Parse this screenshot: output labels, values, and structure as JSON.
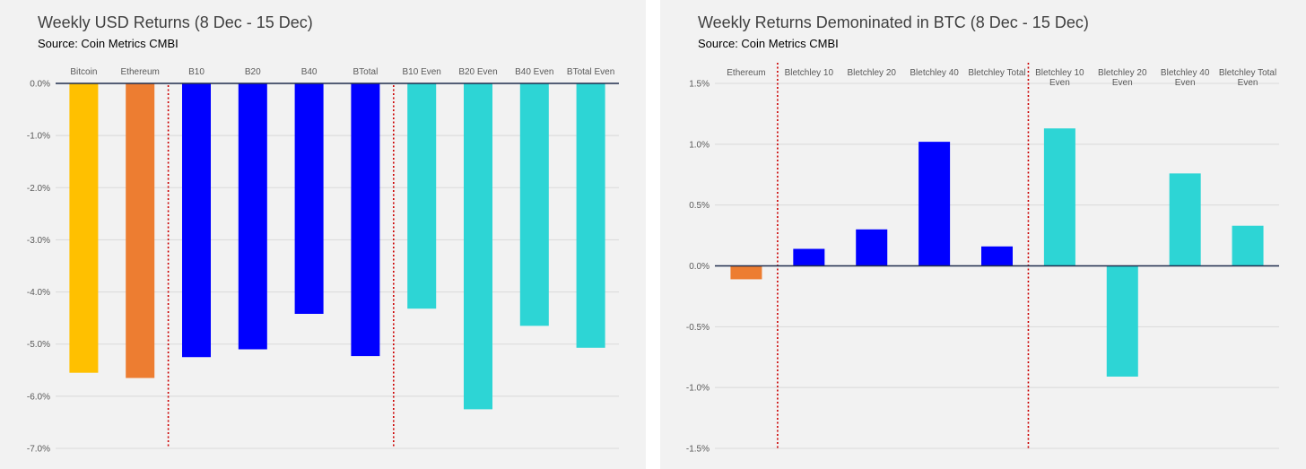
{
  "colors": {
    "bitcoin": "#ffc000",
    "ethereum": "#ed7d31",
    "bletchley": "#0000ff",
    "even": "#2dd5d5",
    "divider": "#cc0000",
    "grid": "#d9d9d9",
    "axis": "#1f2d4d",
    "tick_text": "#595959"
  },
  "chart_data": [
    {
      "type": "bar",
      "title": "Weekly USD Returns (8 Dec - 15 Dec)",
      "subtitle": "Source: Coin Metrics CMBI",
      "xlabel": "",
      "ylabel": "",
      "categories": [
        "Bitcoin",
        "Ethereum",
        "B10",
        "B20",
        "B40",
        "BTotal",
        "B10 Even",
        "B20 Even",
        "B40 Even",
        "BTotal Even"
      ],
      "values": [
        -5.55,
        -5.65,
        -5.25,
        -5.1,
        -4.42,
        -5.23,
        -4.32,
        -6.25,
        -4.65,
        -5.07
      ],
      "bar_colors": [
        "bitcoin",
        "ethereum",
        "bletchley",
        "bletchley",
        "bletchley",
        "bletchley",
        "even",
        "even",
        "even",
        "even"
      ],
      "ylim": [
        -7,
        0
      ],
      "yticks": [
        0,
        -1,
        -2,
        -3,
        -4,
        -5,
        -6,
        -7
      ],
      "ytick_labels": [
        "0.0%",
        "-1.0%",
        "-2.0%",
        "-3.0%",
        "-4.0%",
        "-5.0%",
        "-6.0%",
        "-7.0%"
      ],
      "dividers_after_category": [
        1,
        5
      ],
      "grid": true,
      "legend": "none",
      "category_labels_position": "top"
    },
    {
      "type": "bar",
      "title": "Weekly Returns Demoninated in BTC (8 Dec - 15 Dec)",
      "subtitle": "Source: Coin Metrics CMBI",
      "xlabel": "",
      "ylabel": "",
      "categories": [
        "Ethereum",
        "Bletchley 10",
        "Bletchley 20",
        "Bletchley 40",
        "Bletchley Total",
        "Bletchley 10 Even",
        "Bletchley 20 Even",
        "Bletchley 40 Even",
        "Bletchley Total Even"
      ],
      "category_lines": [
        [
          "Ethereum"
        ],
        [
          "Bletchley 10"
        ],
        [
          "Bletchley 20"
        ],
        [
          "Bletchley 40"
        ],
        [
          "Bletchley Total"
        ],
        [
          "Bletchley 10",
          "Even"
        ],
        [
          "Bletchley 20",
          "Even"
        ],
        [
          "Bletchley 40",
          "Even"
        ],
        [
          "Bletchley Total",
          "Even"
        ]
      ],
      "values": [
        -0.11,
        0.14,
        0.3,
        1.02,
        0.16,
        1.13,
        -0.91,
        0.76,
        0.33
      ],
      "bar_colors": [
        "ethereum",
        "bletchley",
        "bletchley",
        "bletchley",
        "bletchley",
        "even",
        "even",
        "even",
        "even"
      ],
      "ylim": [
        -1.5,
        1.5
      ],
      "yticks": [
        1.5,
        1.0,
        0.5,
        0.0,
        -0.5,
        -1.0,
        -1.5
      ],
      "ytick_labels": [
        "1.5%",
        "1.0%",
        "0.5%",
        "0.0%",
        "-0.5%",
        "-1.0%",
        "-1.5%"
      ],
      "dividers_after_category": [
        0,
        4
      ],
      "grid": true,
      "legend": "none",
      "category_labels_position": "top"
    }
  ]
}
